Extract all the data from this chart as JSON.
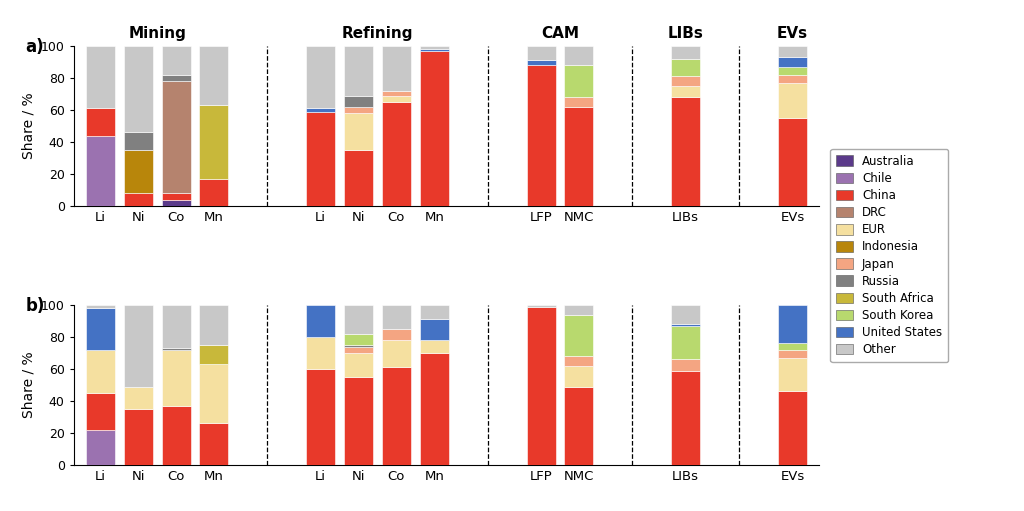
{
  "colors": {
    "Australia": "#5b3a8a",
    "Chile": "#9b72b0",
    "China": "#e8392a",
    "DRC": "#b5836e",
    "EUR": "#f5e0a0",
    "Indonesia": "#b8860b",
    "Japan": "#f4a582",
    "Russia": "#808080",
    "South Africa": "#c8b83a",
    "South Korea": "#b8d96e",
    "United States": "#4472c4",
    "Other": "#c8c8c8"
  },
  "panel_a": {
    "Li": {
      "Australia": 0,
      "Chile": 44,
      "China": 17,
      "DRC": 0,
      "EUR": 0,
      "Indonesia": 0,
      "Japan": 0,
      "Russia": 0,
      "South Africa": 0,
      "South Korea": 0,
      "United States": 0,
      "Other": 39
    },
    "Ni": {
      "Australia": 0,
      "Chile": 0,
      "China": 8,
      "DRC": 0,
      "EUR": 0,
      "Indonesia": 27,
      "Japan": 0,
      "Russia": 11,
      "South Africa": 0,
      "South Korea": 0,
      "United States": 0,
      "Other": 54
    },
    "Co": {
      "Australia": 4,
      "Chile": 0,
      "China": 4,
      "DRC": 70,
      "EUR": 0,
      "Indonesia": 0,
      "Japan": 0,
      "Russia": 4,
      "South Africa": 0,
      "South Korea": 0,
      "United States": 0,
      "Other": 18
    },
    "Mn": {
      "Australia": 0,
      "Chile": 0,
      "China": 17,
      "DRC": 0,
      "EUR": 0,
      "Indonesia": 0,
      "Japan": 0,
      "Russia": 0,
      "South Africa": 46,
      "South Korea": 0,
      "United States": 0,
      "Other": 37
    },
    "Li_R": {
      "Australia": 0,
      "Chile": 0,
      "China": 59,
      "DRC": 0,
      "EUR": 0,
      "Indonesia": 0,
      "Japan": 0,
      "Russia": 0,
      "South Africa": 0,
      "South Korea": 0,
      "United States": 2,
      "Other": 39
    },
    "Ni_R": {
      "Australia": 0,
      "Chile": 0,
      "China": 35,
      "DRC": 0,
      "EUR": 23,
      "Indonesia": 0,
      "Japan": 4,
      "Russia": 7,
      "South Africa": 0,
      "South Korea": 0,
      "United States": 0,
      "Other": 31
    },
    "Co_R": {
      "Australia": 0,
      "Chile": 0,
      "China": 65,
      "DRC": 0,
      "EUR": 4,
      "Indonesia": 0,
      "Japan": 3,
      "Russia": 0,
      "South Africa": 0,
      "South Korea": 0,
      "United States": 0,
      "Other": 28
    },
    "Mn_R": {
      "Australia": 0,
      "Chile": 0,
      "China": 97,
      "DRC": 0,
      "EUR": 0,
      "Indonesia": 0,
      "Japan": 0,
      "Russia": 0,
      "South Africa": 0,
      "South Korea": 0,
      "United States": 1,
      "Other": 2
    },
    "LFP": {
      "Australia": 0,
      "Chile": 0,
      "China": 88,
      "DRC": 0,
      "EUR": 0,
      "Indonesia": 0,
      "Japan": 0,
      "Russia": 0,
      "South Africa": 0,
      "South Korea": 0,
      "United States": 3,
      "Other": 9
    },
    "NMC": {
      "Australia": 0,
      "Chile": 0,
      "China": 62,
      "DRC": 0,
      "EUR": 0,
      "Indonesia": 0,
      "Japan": 6,
      "Russia": 0,
      "South Africa": 0,
      "South Korea": 20,
      "United States": 0,
      "Other": 12
    },
    "LIBs": {
      "Australia": 0,
      "Chile": 0,
      "China": 68,
      "DRC": 0,
      "EUR": 7,
      "Indonesia": 0,
      "Japan": 6,
      "Russia": 0,
      "South Africa": 0,
      "South Korea": 11,
      "United States": 0,
      "Other": 8
    },
    "EVs": {
      "Australia": 0,
      "Chile": 0,
      "China": 55,
      "DRC": 0,
      "EUR": 22,
      "Indonesia": 0,
      "Japan": 5,
      "Russia": 0,
      "South Africa": 0,
      "South Korea": 5,
      "United States": 6,
      "Other": 7
    }
  },
  "panel_b": {
    "Li": {
      "Australia": 0,
      "Chile": 22,
      "China": 23,
      "DRC": 0,
      "EUR": 27,
      "Indonesia": 0,
      "Japan": 0,
      "Russia": 0,
      "South Africa": 0,
      "South Korea": 0,
      "United States": 26,
      "Other": 2
    },
    "Ni": {
      "Australia": 0,
      "Chile": 0,
      "China": 35,
      "DRC": 0,
      "EUR": 14,
      "Indonesia": 0,
      "Japan": 0,
      "Russia": 0,
      "South Africa": 0,
      "South Korea": 0,
      "United States": 0,
      "Other": 51
    },
    "Co": {
      "Australia": 0,
      "Chile": 0,
      "China": 37,
      "DRC": 0,
      "EUR": 35,
      "Indonesia": 0,
      "Japan": 0,
      "Russia": 1,
      "South Africa": 0,
      "South Korea": 0,
      "United States": 0,
      "Other": 27
    },
    "Mn": {
      "Australia": 0,
      "Chile": 0,
      "China": 26,
      "DRC": 0,
      "EUR": 37,
      "Indonesia": 0,
      "Japan": 0,
      "Russia": 0,
      "South Africa": 12,
      "South Korea": 0,
      "United States": 0,
      "Other": 25
    },
    "Li_R": {
      "Australia": 0,
      "Chile": 0,
      "China": 60,
      "DRC": 0,
      "EUR": 20,
      "Indonesia": 0,
      "Japan": 0,
      "Russia": 0,
      "South Africa": 0,
      "South Korea": 0,
      "United States": 20,
      "Other": 0
    },
    "Ni_R": {
      "Australia": 0,
      "Chile": 0,
      "China": 55,
      "DRC": 0,
      "EUR": 15,
      "Indonesia": 0,
      "Japan": 4,
      "Russia": 1,
      "South Africa": 0,
      "South Korea": 7,
      "United States": 0,
      "Other": 18
    },
    "Co_R": {
      "Australia": 0,
      "Chile": 0,
      "China": 61,
      "DRC": 0,
      "EUR": 17,
      "Indonesia": 0,
      "Japan": 7,
      "Russia": 0,
      "South Africa": 0,
      "South Korea": 0,
      "United States": 0,
      "Other": 15
    },
    "Mn_R": {
      "Australia": 0,
      "Chile": 0,
      "China": 70,
      "DRC": 0,
      "EUR": 8,
      "Indonesia": 0,
      "Japan": 0,
      "Russia": 0,
      "South Africa": 0,
      "South Korea": 0,
      "United States": 13,
      "Other": 9
    },
    "LFP": {
      "Australia": 0,
      "Chile": 0,
      "China": 99,
      "DRC": 0,
      "EUR": 0,
      "Indonesia": 0,
      "Japan": 0,
      "Russia": 0,
      "South Africa": 0,
      "South Korea": 0,
      "United States": 0,
      "Other": 1
    },
    "NMC": {
      "Australia": 0,
      "Chile": 0,
      "China": 49,
      "DRC": 0,
      "EUR": 13,
      "Indonesia": 0,
      "Japan": 6,
      "Russia": 0,
      "South Africa": 0,
      "South Korea": 26,
      "United States": 0,
      "Other": 6
    },
    "LIBs": {
      "Australia": 0,
      "Chile": 0,
      "China": 59,
      "DRC": 0,
      "EUR": 0,
      "Indonesia": 0,
      "Japan": 7,
      "Russia": 0,
      "South Africa": 0,
      "South Korea": 21,
      "United States": 1,
      "Other": 12
    },
    "EVs": {
      "Australia": 0,
      "Chile": 0,
      "China": 46,
      "DRC": 0,
      "EUR": 21,
      "Indonesia": 0,
      "Japan": 5,
      "Russia": 0,
      "South Africa": 0,
      "South Korea": 4,
      "United States": 24,
      "Other": 0
    }
  },
  "bar_keys_order": [
    "Li",
    "Ni",
    "Co",
    "Mn",
    "Li_R",
    "Ni_R",
    "Co_R",
    "Mn_R",
    "LFP",
    "NMC",
    "LIBs",
    "EVs"
  ],
  "bar_labels": {
    "Li": "Li",
    "Ni": "Ni",
    "Co": "Co",
    "Mn": "Mn",
    "Li_R": "Li",
    "Ni_R": "Ni",
    "Co_R": "Co",
    "Mn_R": "Mn",
    "LFP": "LFP",
    "NMC": "NMC",
    "LIBs": "LIBs",
    "EVs": "EVs"
  },
  "group_headers": [
    {
      "label": "Mining",
      "bars": [
        "Li",
        "Ni",
        "Co",
        "Mn"
      ]
    },
    {
      "label": "Refining",
      "bars": [
        "Li_R",
        "Ni_R",
        "Co_R",
        "Mn_R"
      ]
    },
    {
      "label": "CAM",
      "bars": [
        "LFP",
        "NMC"
      ]
    },
    {
      "label": "LIBs",
      "bars": [
        "LIBs"
      ]
    },
    {
      "label": "EVs",
      "bars": [
        "EVs"
      ]
    }
  ],
  "legend_order": [
    "Australia",
    "Chile",
    "China",
    "DRC",
    "EUR",
    "Indonesia",
    "Japan",
    "Russia",
    "South Africa",
    "South Korea",
    "United States",
    "Other"
  ],
  "ylabel": "Share / %"
}
